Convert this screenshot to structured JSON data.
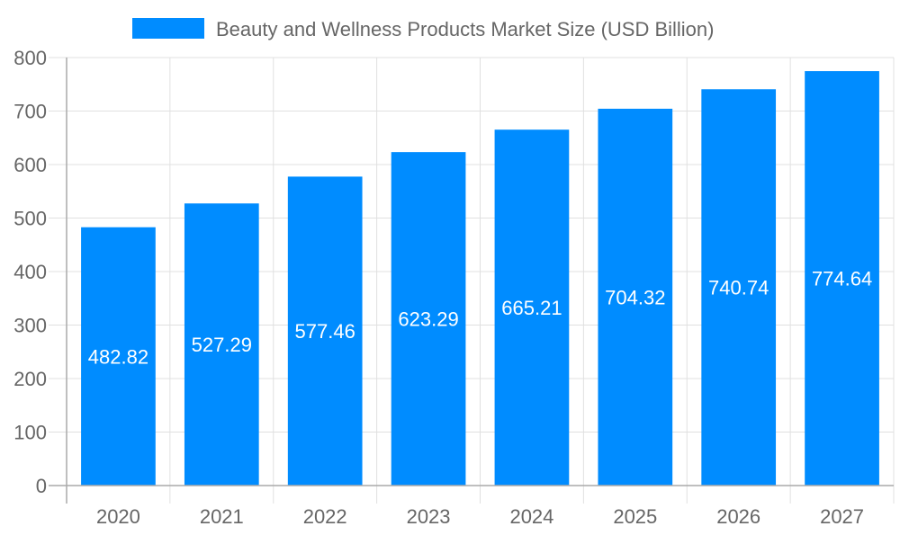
{
  "chart_data": {
    "type": "bar",
    "title": "",
    "xlabel": "",
    "ylabel": "",
    "legend": {
      "position": "top",
      "entries": [
        "Beauty and Wellness Products Market Size (USD Billion)"
      ]
    },
    "categories": [
      "2020",
      "2021",
      "2022",
      "2023",
      "2024",
      "2025",
      "2026",
      "2027"
    ],
    "series": [
      {
        "name": "Beauty and Wellness Products Market Size (USD Billion)",
        "values": [
          482.82,
          527.29,
          577.46,
          623.29,
          665.21,
          704.32,
          740.74,
          774.64
        ],
        "color": "#008cff"
      }
    ],
    "data_labels": [
      "482.82",
      "527.29",
      "577.46",
      "623.29",
      "665.21",
      "704.32",
      "740.74",
      "774.64"
    ],
    "ylim": [
      0,
      800
    ],
    "yticks": [
      "0",
      "100",
      "200",
      "300",
      "400",
      "500",
      "600",
      "700",
      "800"
    ],
    "grid": true
  }
}
